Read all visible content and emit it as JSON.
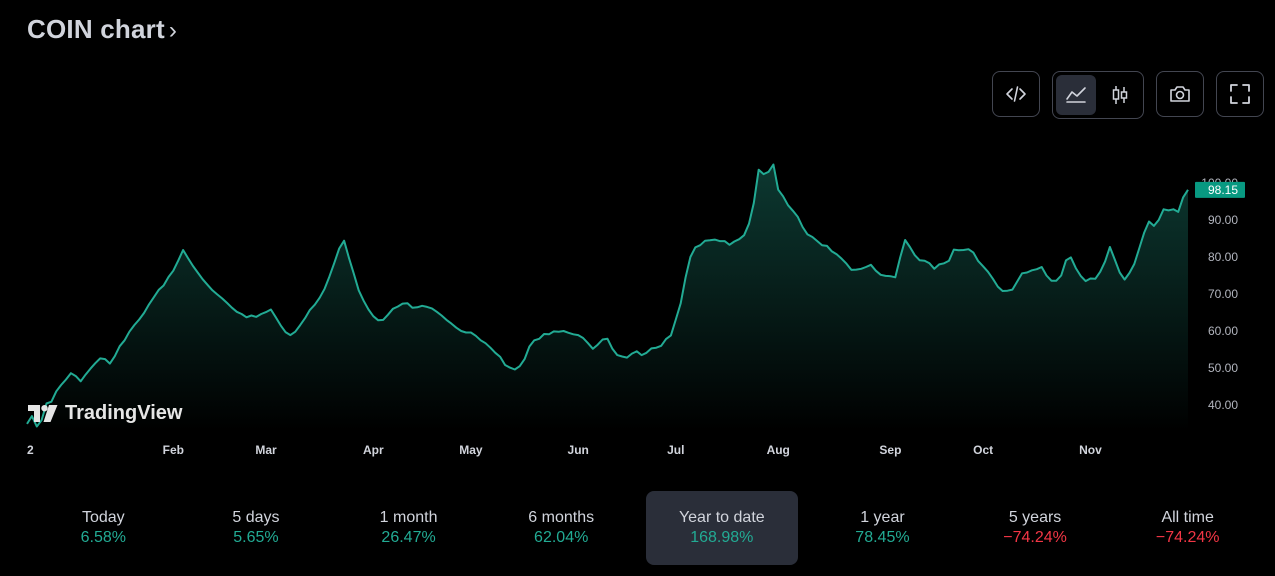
{
  "header": {
    "title": "COIN chart",
    "chevron": "›"
  },
  "toolbar": {
    "buttons": [
      {
        "name": "embed-code-icon"
      },
      {
        "name": "area-chart-icon",
        "active": true
      },
      {
        "name": "candlestick-icon"
      },
      {
        "name": "camera-icon"
      },
      {
        "name": "fullscreen-icon"
      }
    ]
  },
  "brand": {
    "logo_text": "TradingView"
  },
  "colors": {
    "line": "#22ab94",
    "area_top": "#0d3b33",
    "positive": "#22ab94",
    "negative": "#f23645",
    "price_badge": "#089981",
    "background": "#000000"
  },
  "chart_data": {
    "type": "area",
    "title": "",
    "xlabel": "",
    "ylabel": "",
    "ylim": [
      33,
      108
    ],
    "y_ticks": [
      "40.00",
      "50.00",
      "60.00",
      "70.00",
      "80.00",
      "90.00",
      "100.00"
    ],
    "y_tick_values": [
      40,
      50,
      60,
      70,
      80,
      90,
      100
    ],
    "x_ticks": [
      "2",
      "Feb",
      "Mar",
      "Apr",
      "May",
      "Jun",
      "Jul",
      "Aug",
      "Sep",
      "Oct",
      "Nov"
    ],
    "x_tick_index": [
      0,
      30,
      49,
      71,
      91,
      113,
      133,
      154,
      177,
      196,
      218
    ],
    "last_price": "98.15",
    "series": [
      {
        "values": [
          34.9,
          37.0,
          34.2,
          35.9,
          40.4,
          40.9,
          43.7,
          45.4,
          46.9,
          48.6,
          47.8,
          46.4,
          48.2,
          49.8,
          51.3,
          52.6,
          52.4,
          51.2,
          53.2,
          55.9,
          57.5,
          59.8,
          61.6,
          63.1,
          64.9,
          67.2,
          69.1,
          71.1,
          72.3,
          74.6,
          76.3,
          79.0,
          81.9,
          79.7,
          77.6,
          75.8,
          74.0,
          72.5,
          71.0,
          69.9,
          68.8,
          67.6,
          66.3,
          65.2,
          64.6,
          63.7,
          64.2,
          63.8,
          64.6,
          65.1,
          65.8,
          63.7,
          61.5,
          59.7,
          58.9,
          59.8,
          61.6,
          63.5,
          65.7,
          67.1,
          69.0,
          71.4,
          74.7,
          78.4,
          82.3,
          84.4,
          79.7,
          75.5,
          71.0,
          68.2,
          65.8,
          64.0,
          62.9,
          63.0,
          64.4,
          66.0,
          66.6,
          67.4,
          67.5,
          66.3,
          66.4,
          66.8,
          66.5,
          66.1,
          65.2,
          64.2,
          63.0,
          62.0,
          60.9,
          60.0,
          59.6,
          59.6,
          58.7,
          57.5,
          56.7,
          55.5,
          54.1,
          53.0,
          50.8,
          50.1,
          49.6,
          50.5,
          52.4,
          55.8,
          57.5,
          57.9,
          59.2,
          59.1,
          59.9,
          59.8,
          60.0,
          59.5,
          59.1,
          58.9,
          58.1,
          56.7,
          55.2,
          56.3,
          57.7,
          57.9,
          55.2,
          53.5,
          53.1,
          52.8,
          53.9,
          54.5,
          53.5,
          54.1,
          55.3,
          55.5,
          56.0,
          57.8,
          58.8,
          63.1,
          67.5,
          74.5,
          80.0,
          82.6,
          83.2,
          84.4,
          84.5,
          84.7,
          84.3,
          84.3,
          83.3,
          84.2,
          84.8,
          85.9,
          89.0,
          94.6,
          103.6,
          102.4,
          103.0,
          105.0,
          98.2,
          96.4,
          94.0,
          92.5,
          90.9,
          88.1,
          86.1,
          85.4,
          84.3,
          83.2,
          83.0,
          81.5,
          80.7,
          79.5,
          78.2,
          76.5,
          76.6,
          76.8,
          77.3,
          77.9,
          76.3,
          75.2,
          74.9,
          74.8,
          74.5,
          79.9,
          84.6,
          82.7,
          80.5,
          79.1,
          79.0,
          78.3,
          76.8,
          78.0,
          78.3,
          79.0,
          82.0,
          81.8,
          81.9,
          82.1,
          81.2,
          78.9,
          77.5,
          76.0,
          74.1,
          72.0,
          70.8,
          70.9,
          71.2,
          73.4,
          75.6,
          75.8,
          76.4,
          76.7,
          77.3,
          75.0,
          73.6,
          73.6,
          75.0,
          79.1,
          79.9,
          77.0,
          74.9,
          73.5,
          74.2,
          74.1,
          76.0,
          78.8,
          82.7,
          79.3,
          75.8,
          73.9,
          75.7,
          78.1,
          82.3,
          86.5,
          89.6,
          88.4,
          90.0,
          92.9,
          92.6,
          92.9,
          92.2,
          96.1,
          98.15
        ]
      }
    ]
  },
  "periods": [
    {
      "label": "Today",
      "value": "6.58%",
      "sign": "pos"
    },
    {
      "label": "5 days",
      "value": "5.65%",
      "sign": "pos"
    },
    {
      "label": "1 month",
      "value": "26.47%",
      "sign": "pos"
    },
    {
      "label": "6 months",
      "value": "62.04%",
      "sign": "pos"
    },
    {
      "label": "Year to date",
      "value": "168.98%",
      "sign": "pos",
      "active": true
    },
    {
      "label": "1 year",
      "value": "78.45%",
      "sign": "pos"
    },
    {
      "label": "5 years",
      "value": "−74.24%",
      "sign": "neg"
    },
    {
      "label": "All time",
      "value": "−74.24%",
      "sign": "neg"
    }
  ]
}
